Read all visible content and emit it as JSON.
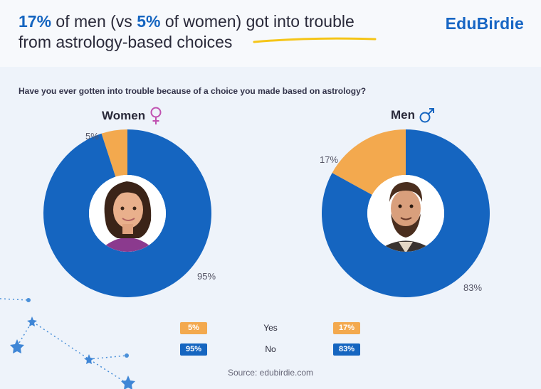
{
  "header": {
    "title_pct_men": "17%",
    "title_part1": " of men (vs ",
    "title_pct_women": "5%",
    "title_part2": " of women) ",
    "title_underlined": "got into trouble",
    "title_line2": "from astrology-based choices",
    "logo": "EduBirdie"
  },
  "question": "Have you ever gotten into trouble because of a choice you made based on astrology?",
  "colors": {
    "yes": "#f3a94e",
    "no": "#1565c0"
  },
  "chart_data": [
    {
      "type": "pie",
      "title": "Women",
      "categories": [
        "Yes",
        "No"
      ],
      "values": [
        5,
        95
      ],
      "labels": [
        "5%",
        "95%"
      ]
    },
    {
      "type": "pie",
      "title": "Men",
      "categories": [
        "Yes",
        "No"
      ],
      "values": [
        17,
        83
      ],
      "labels": [
        "17%",
        "83%"
      ]
    }
  ],
  "legend": {
    "rows": [
      {
        "label": "Yes",
        "women": "5%",
        "men": "17%"
      },
      {
        "label": "No",
        "women": "95%",
        "men": "83%"
      }
    ]
  },
  "source": "Source: edubirdie.com"
}
